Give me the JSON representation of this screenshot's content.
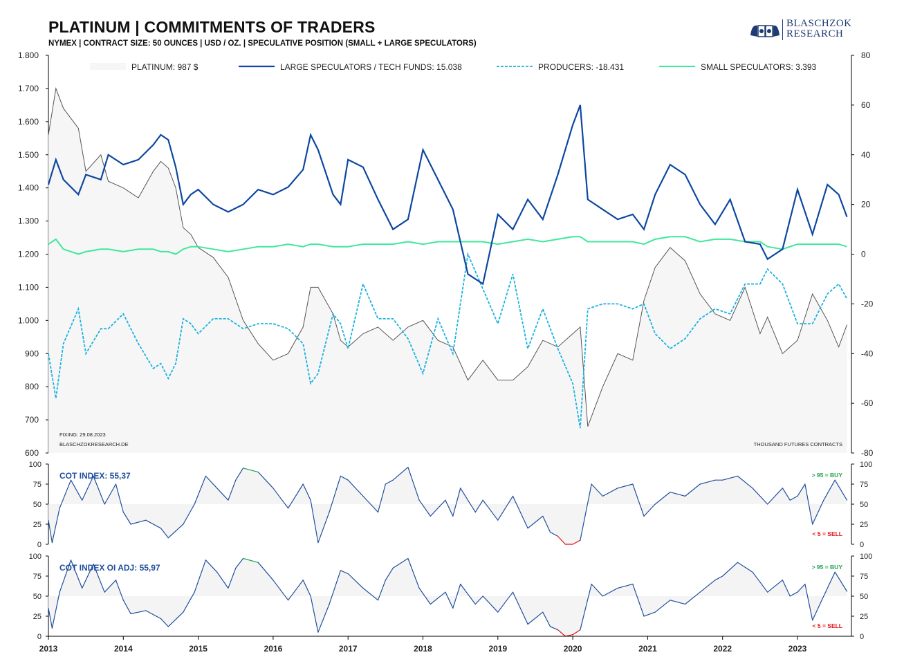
{
  "header": {
    "title": "PLATINUM | COMMITMENTS OF TRADERS",
    "subtitle": "NYMEX  |  CONTRACT SIZE: 50 OUNCES  |  USD / OZ.  |  SPECULATIVE  POSITION (SMALL + LARGE SPECULATORS)",
    "logo_line1": "BLASCHZOK",
    "logo_line2": "RESEARCH"
  },
  "colors": {
    "price": "#555555",
    "price_fill": "#f6f6f6",
    "large_spec": "#0d47a1",
    "producers": "#1ab2e0",
    "small_spec": "#3ee89a",
    "cot_line": "#1f4e9c",
    "cot_buy": "#1da34a",
    "cot_sell": "#e01010"
  },
  "chart_data": [
    {
      "type": "line",
      "panel": "main",
      "x_labels": [
        "2013",
        "2014",
        "2015",
        "2016",
        "2017",
        "2018",
        "2019",
        "2020",
        "2021",
        "2022",
        "2023"
      ],
      "y_left": {
        "ylim": [
          600,
          1800
        ],
        "ticks": [
          "1.800",
          "1.700",
          "1.600",
          "1.500",
          "1.400",
          "1.300",
          "1.200",
          "1.100",
          "1.000",
          "900",
          "800",
          "700",
          "600"
        ]
      },
      "y_right": {
        "ylim": [
          -80,
          80
        ],
        "ticks": [
          "80",
          "60",
          "40",
          "20",
          "0",
          "-20",
          "-40",
          "-60",
          "-80"
        ]
      },
      "legend": [
        "PLATINUM: 987 $",
        "LARGE SPECULATORS / TECH FUNDS: 15.038",
        "PRODUCERS: -18.431",
        "SMALL SPECULATORS: 3.393"
      ],
      "footnote_left": [
        "FIXING: 29.08.2023",
        "BLASCHZOKRESEARCH.DE"
      ],
      "footnote_right": "THOUSAND  FUTURES  CONTRACTS",
      "series": [
        {
          "name": "PLATINUM",
          "axis": "left",
          "x": [
            2013.0,
            2013.1,
            2013.2,
            2013.4,
            2013.5,
            2013.7,
            2013.8,
            2014.0,
            2014.2,
            2014.4,
            2014.5,
            2014.6,
            2014.7,
            2014.8,
            2014.9,
            2015.0,
            2015.2,
            2015.4,
            2015.6,
            2015.8,
            2016.0,
            2016.2,
            2016.4,
            2016.5,
            2016.6,
            2016.8,
            2016.9,
            2017.0,
            2017.2,
            2017.4,
            2017.6,
            2017.8,
            2018.0,
            2018.2,
            2018.4,
            2018.6,
            2018.8,
            2019.0,
            2019.2,
            2019.4,
            2019.6,
            2019.8,
            2020.0,
            2020.1,
            2020.2,
            2020.4,
            2020.6,
            2020.8,
            2020.95,
            2021.1,
            2021.3,
            2021.5,
            2021.7,
            2021.9,
            2022.1,
            2022.3,
            2022.5,
            2022.6,
            2022.8,
            2023.0,
            2023.2,
            2023.4,
            2023.55,
            2023.66
          ],
          "y": [
            1560,
            1700,
            1640,
            1580,
            1450,
            1500,
            1420,
            1400,
            1370,
            1450,
            1480,
            1460,
            1400,
            1280,
            1260,
            1220,
            1190,
            1130,
            1000,
            930,
            880,
            900,
            980,
            1100,
            1100,
            1020,
            940,
            920,
            960,
            980,
            940,
            980,
            1000,
            940,
            920,
            820,
            880,
            820,
            820,
            860,
            940,
            920,
            960,
            980,
            680,
            800,
            900,
            880,
            1060,
            1160,
            1220,
            1180,
            1080,
            1020,
            1000,
            1100,
            960,
            1010,
            900,
            940,
            1080,
            1000,
            920,
            987
          ]
        },
        {
          "name": "LARGE SPECULATORS / TECH FUNDS",
          "axis": "right",
          "x": [
            2013.0,
            2013.1,
            2013.2,
            2013.4,
            2013.5,
            2013.7,
            2013.8,
            2014.0,
            2014.2,
            2014.4,
            2014.5,
            2014.6,
            2014.7,
            2014.8,
            2014.9,
            2015.0,
            2015.2,
            2015.4,
            2015.6,
            2015.8,
            2016.0,
            2016.2,
            2016.4,
            2016.5,
            2016.6,
            2016.8,
            2016.9,
            2017.0,
            2017.2,
            2017.4,
            2017.6,
            2017.8,
            2018.0,
            2018.2,
            2018.4,
            2018.6,
            2018.8,
            2019.0,
            2019.2,
            2019.4,
            2019.6,
            2019.8,
            2020.0,
            2020.1,
            2020.2,
            2020.4,
            2020.6,
            2020.8,
            2020.95,
            2021.1,
            2021.3,
            2021.5,
            2021.7,
            2021.9,
            2022.1,
            2022.3,
            2022.5,
            2022.6,
            2022.8,
            2023.0,
            2023.2,
            2023.4,
            2023.55,
            2023.66
          ],
          "y": [
            28,
            38,
            30,
            24,
            32,
            30,
            40,
            36,
            38,
            44,
            48,
            46,
            35,
            20,
            24,
            26,
            20,
            17,
            20,
            26,
            24,
            27,
            34,
            48,
            42,
            24,
            20,
            38,
            35,
            22,
            10,
            14,
            42,
            30,
            18,
            -8,
            -12,
            16,
            10,
            22,
            14,
            32,
            52,
            60,
            22,
            18,
            14,
            16,
            10,
            24,
            36,
            32,
            20,
            12,
            22,
            5,
            4,
            -2,
            2,
            26,
            8,
            28,
            24,
            15
          ]
        },
        {
          "name": "PRODUCERS",
          "axis": "right",
          "x": [
            2013.0,
            2013.1,
            2013.2,
            2013.4,
            2013.5,
            2013.7,
            2013.8,
            2014.0,
            2014.2,
            2014.4,
            2014.5,
            2014.6,
            2014.7,
            2014.8,
            2014.9,
            2015.0,
            2015.2,
            2015.4,
            2015.6,
            2015.8,
            2016.0,
            2016.2,
            2016.4,
            2016.5,
            2016.6,
            2016.8,
            2016.9,
            2017.0,
            2017.2,
            2017.4,
            2017.6,
            2017.8,
            2018.0,
            2018.2,
            2018.4,
            2018.6,
            2018.8,
            2019.0,
            2019.2,
            2019.4,
            2019.6,
            2019.8,
            2020.0,
            2020.1,
            2020.2,
            2020.4,
            2020.6,
            2020.8,
            2020.95,
            2021.1,
            2021.3,
            2021.5,
            2021.7,
            2021.9,
            2022.1,
            2022.3,
            2022.5,
            2022.6,
            2022.8,
            2023.0,
            2023.2,
            2023.4,
            2023.55,
            2023.66
          ],
          "y": [
            -40,
            -58,
            -36,
            -22,
            -40,
            -30,
            -30,
            -24,
            -36,
            -46,
            -44,
            -50,
            -44,
            -26,
            -28,
            -32,
            -26,
            -26,
            -30,
            -28,
            -28,
            -30,
            -36,
            -52,
            -48,
            -24,
            -28,
            -38,
            -12,
            -26,
            -26,
            -34,
            -48,
            -26,
            -40,
            0,
            -14,
            -28,
            -8,
            -38,
            -22,
            -38,
            -52,
            -70,
            -22,
            -20,
            -20,
            -22,
            -20,
            -32,
            -38,
            -34,
            -26,
            -22,
            -24,
            -12,
            -12,
            -6,
            -12,
            -28,
            -28,
            -16,
            -12,
            -18
          ]
        },
        {
          "name": "SMALL SPECULATORS",
          "axis": "right",
          "x": [
            2013.0,
            2013.1,
            2013.2,
            2013.4,
            2013.5,
            2013.7,
            2013.8,
            2014.0,
            2014.2,
            2014.4,
            2014.5,
            2014.6,
            2014.7,
            2014.8,
            2014.9,
            2015.0,
            2015.2,
            2015.4,
            2015.6,
            2015.8,
            2016.0,
            2016.2,
            2016.4,
            2016.5,
            2016.6,
            2016.8,
            2016.9,
            2017.0,
            2017.2,
            2017.4,
            2017.6,
            2017.8,
            2018.0,
            2018.2,
            2018.4,
            2018.6,
            2018.8,
            2019.0,
            2019.2,
            2019.4,
            2019.6,
            2019.8,
            2020.0,
            2020.1,
            2020.2,
            2020.4,
            2020.6,
            2020.8,
            2020.95,
            2021.1,
            2021.3,
            2021.5,
            2021.7,
            2021.9,
            2022.1,
            2022.3,
            2022.5,
            2022.6,
            2022.8,
            2023.0,
            2023.2,
            2023.4,
            2023.55,
            2023.66
          ],
          "y": [
            4,
            6,
            2,
            0,
            1,
            2,
            2,
            1,
            2,
            2,
            1,
            1,
            0,
            2,
            3,
            3,
            2,
            1,
            2,
            3,
            3,
            4,
            3,
            4,
            4,
            3,
            3,
            3,
            4,
            4,
            4,
            5,
            4,
            5,
            5,
            5,
            5,
            4,
            5,
            6,
            5,
            6,
            7,
            7,
            5,
            5,
            5,
            5,
            4,
            6,
            7,
            7,
            5,
            6,
            6,
            5,
            5,
            3,
            2,
            4,
            4,
            4,
            4,
            3
          ]
        }
      ]
    },
    {
      "type": "line",
      "panel": "cot_index",
      "label": "COT INDEX: 55,37",
      "ylim": [
        0,
        100
      ],
      "ticks": [
        "100",
        "75",
        "50",
        "25",
        "0"
      ],
      "buy_label": "> 95 = BUY",
      "sell_label": "< 5 = SELL",
      "x": [
        2013.0,
        2013.05,
        2013.15,
        2013.3,
        2013.45,
        2013.6,
        2013.75,
        2013.9,
        2014.0,
        2014.1,
        2014.3,
        2014.5,
        2014.6,
        2014.8,
        2014.95,
        2015.1,
        2015.25,
        2015.4,
        2015.5,
        2015.6,
        2015.8,
        2016.0,
        2016.2,
        2016.4,
        2016.5,
        2016.6,
        2016.75,
        2016.9,
        2017.0,
        2017.2,
        2017.4,
        2017.5,
        2017.6,
        2017.8,
        2017.95,
        2018.1,
        2018.3,
        2018.4,
        2018.5,
        2018.7,
        2018.8,
        2019.0,
        2019.2,
        2019.4,
        2019.6,
        2019.7,
        2019.8,
        2019.9,
        2020.0,
        2020.1,
        2020.25,
        2020.4,
        2020.6,
        2020.8,
        2020.95,
        2021.1,
        2021.3,
        2021.5,
        2021.7,
        2021.9,
        2022.0,
        2022.2,
        2022.4,
        2022.6,
        2022.8,
        2022.9,
        2023.0,
        2023.1,
        2023.2,
        2023.35,
        2023.5,
        2023.66
      ],
      "y": [
        30,
        2,
        45,
        80,
        55,
        85,
        50,
        75,
        40,
        25,
        30,
        20,
        8,
        25,
        50,
        85,
        70,
        55,
        80,
        95,
        90,
        70,
        45,
        75,
        55,
        2,
        40,
        85,
        80,
        60,
        40,
        75,
        80,
        96,
        55,
        35,
        55,
        35,
        70,
        40,
        55,
        30,
        60,
        20,
        35,
        15,
        10,
        0,
        0,
        5,
        75,
        60,
        70,
        75,
        35,
        50,
        65,
        60,
        75,
        80,
        80,
        85,
        70,
        50,
        70,
        55,
        60,
        75,
        25,
        55,
        80,
        55
      ]
    },
    {
      "type": "line",
      "panel": "cot_index_oi_adj",
      "label": "COT INDEX OI ADJ: 55,97",
      "ylim": [
        0,
        100
      ],
      "ticks": [
        "100",
        "75",
        "50",
        "25",
        "0"
      ],
      "buy_label": "> 95 = BUY",
      "sell_label": "< 5 = SELL",
      "x": [
        2013.0,
        2013.05,
        2013.15,
        2013.3,
        2013.45,
        2013.6,
        2013.75,
        2013.9,
        2014.0,
        2014.1,
        2014.3,
        2014.5,
        2014.6,
        2014.8,
        2014.95,
        2015.1,
        2015.25,
        2015.4,
        2015.5,
        2015.6,
        2015.8,
        2016.0,
        2016.2,
        2016.4,
        2016.5,
        2016.6,
        2016.75,
        2016.9,
        2017.0,
        2017.2,
        2017.4,
        2017.5,
        2017.6,
        2017.8,
        2017.95,
        2018.1,
        2018.3,
        2018.4,
        2018.5,
        2018.7,
        2018.8,
        2019.0,
        2019.2,
        2019.4,
        2019.6,
        2019.7,
        2019.8,
        2019.9,
        2020.0,
        2020.1,
        2020.25,
        2020.4,
        2020.6,
        2020.8,
        2020.95,
        2021.1,
        2021.3,
        2021.5,
        2021.7,
        2021.9,
        2022.0,
        2022.2,
        2022.4,
        2022.6,
        2022.8,
        2022.9,
        2023.0,
        2023.1,
        2023.2,
        2023.35,
        2023.5,
        2023.66
      ],
      "y": [
        35,
        10,
        55,
        95,
        60,
        90,
        55,
        70,
        45,
        28,
        32,
        22,
        12,
        30,
        55,
        95,
        80,
        60,
        85,
        97,
        92,
        70,
        45,
        70,
        50,
        5,
        40,
        82,
        78,
        60,
        45,
        70,
        85,
        97,
        60,
        40,
        55,
        35,
        65,
        40,
        50,
        30,
        55,
        15,
        30,
        12,
        8,
        0,
        2,
        8,
        65,
        50,
        60,
        65,
        25,
        30,
        45,
        40,
        55,
        70,
        75,
        92,
        80,
        55,
        70,
        50,
        55,
        65,
        20,
        50,
        80,
        56
      ]
    }
  ]
}
